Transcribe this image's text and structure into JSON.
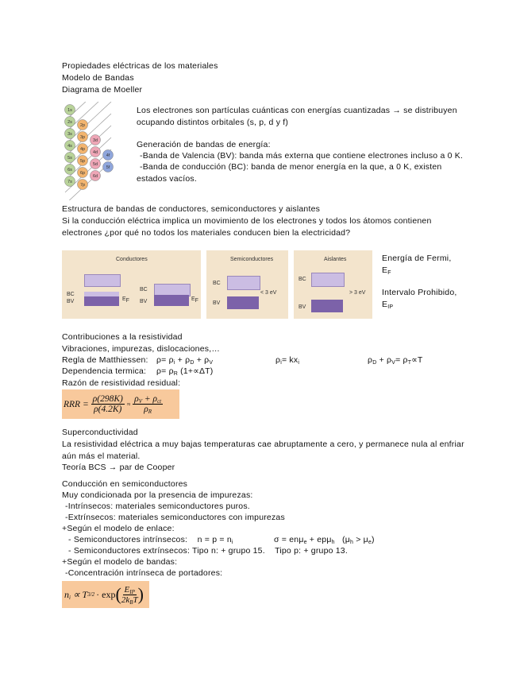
{
  "header": {
    "title": "Propiedades eléctricas de los materiales",
    "subtitle": "Modelo de Bandas",
    "section": "Diagrama de Moeller"
  },
  "moeller": {
    "orbitals": [
      "1s",
      "2s",
      "2p",
      "3s",
      "3p",
      "3d",
      "4s",
      "4p",
      "4d",
      "4f",
      "5s",
      "5p",
      "5d",
      "5f",
      "6s",
      "6p",
      "6d",
      "7s",
      "7p"
    ]
  },
  "intro": {
    "p1": "Los electrones son partículas cuánticas con energías cuantizadas → se distribuyen ocupando distintos orbitales (s, p, d y f)",
    "band_heading": "Generación de bandas de energía:",
    "bv": "-Banda de Valencia (BV): banda más externa que contiene electrones incluso a 0 K.",
    "bc": "-Banda de conducción (BC): banda de menor energía en la que, a 0 K, existen estados vacíos."
  },
  "structure": {
    "heading": "Estructura de bandas de conductores, semiconductores y aislantes",
    "question": "Si la conducción eléctrica implica un movimiento de los electrones y todos los átomos contienen electrones ¿por qué no todos los materiales conducen bien la electricidad?",
    "panels": [
      {
        "title": "Conductores",
        "bc": "BC",
        "bv": "BV",
        "ef": [
          "E",
          "F"
        ]
      },
      {
        "title": "Semiconductores",
        "bc": "BC",
        "bv": "BV",
        "gap": "< 3 eV"
      },
      {
        "title": "Aislantes",
        "bc": "BC",
        "bv": "BV",
        "gap": "> 3 eV"
      }
    ],
    "fermi_label": "Energía de Fermi,",
    "fermi_symbol": [
      "E",
      "F"
    ],
    "gap_label": "Intervalo Prohibido,",
    "gap_symbol": [
      "E",
      "IP"
    ]
  },
  "resistivity": {
    "heading": "Contribuciones a la resistividad",
    "causes": "Vibraciones, impurezas, dislocaciones,…",
    "matthiessen_label": "Regla de Matthiessen:",
    "f1": [
      "ρ= ρ",
      "i",
      " + ρ",
      "D",
      " + ρ",
      "V"
    ],
    "f2": [
      "ρ",
      "i",
      "= kx",
      "i"
    ],
    "f3": [
      "ρ",
      "D",
      " + ρ",
      "V",
      "= ρ",
      "T",
      "∝T"
    ],
    "thermal_label": "Dependencia termica:",
    "thermal": [
      "ρ= ρ",
      "R",
      " (1+∝ΔT)"
    ],
    "rrr_label": "Razón de resistividad residual:",
    "rrr": {
      "lhs": "RRR =",
      "num1": "ρ(298K)",
      "den1": "ρ(4.2K)",
      "approx": "≈",
      "num2": [
        "ρ",
        "V",
        " + ρ",
        "ct"
      ],
      "den2": [
        "ρ",
        "R"
      ]
    }
  },
  "superconductivity": {
    "heading": "Superconductividad",
    "text": "La resistividad eléctrica a muy bajas temperaturas cae abruptamente a cero, y permanece nula al enfriar aún más el material.",
    "theory": "Teoría BCS → par de Cooper"
  },
  "semiconductors": {
    "heading": "Conducción en semiconductores",
    "intro": "Muy condicionada por la presencia de impurezas:",
    "intrinsic_def": "-Intrínsecos: materiales semiconductores puros.",
    "extrinsic_def": "-Extrínsecos: materiales semiconductores con impurezas",
    "bond_model": "+Según el modelo de enlace:",
    "intrinsic": [
      "- Semiconductores intrínsecos:    n = p = n",
      "i"
    ],
    "sigma": [
      "σ = enμ",
      "e",
      " + epμ",
      "h",
      "   (μ",
      "h",
      " > μ",
      "e",
      ")"
    ],
    "extrinsic": "- Semiconductores extrínsecos: Tipo n: + grupo 15.    Tipo p: + grupo 13.",
    "band_model": "+Según el modelo de bandas:",
    "concentration": "-Concentración intrínseca de portadores:",
    "formula": {
      "lhs": [
        "n",
        "i",
        " ∝ T"
      ],
      "exp": "3/2",
      "mid": "· exp",
      "num": [
        "E",
        "IP"
      ],
      "den": [
        "2k",
        "B",
        "T"
      ]
    }
  }
}
